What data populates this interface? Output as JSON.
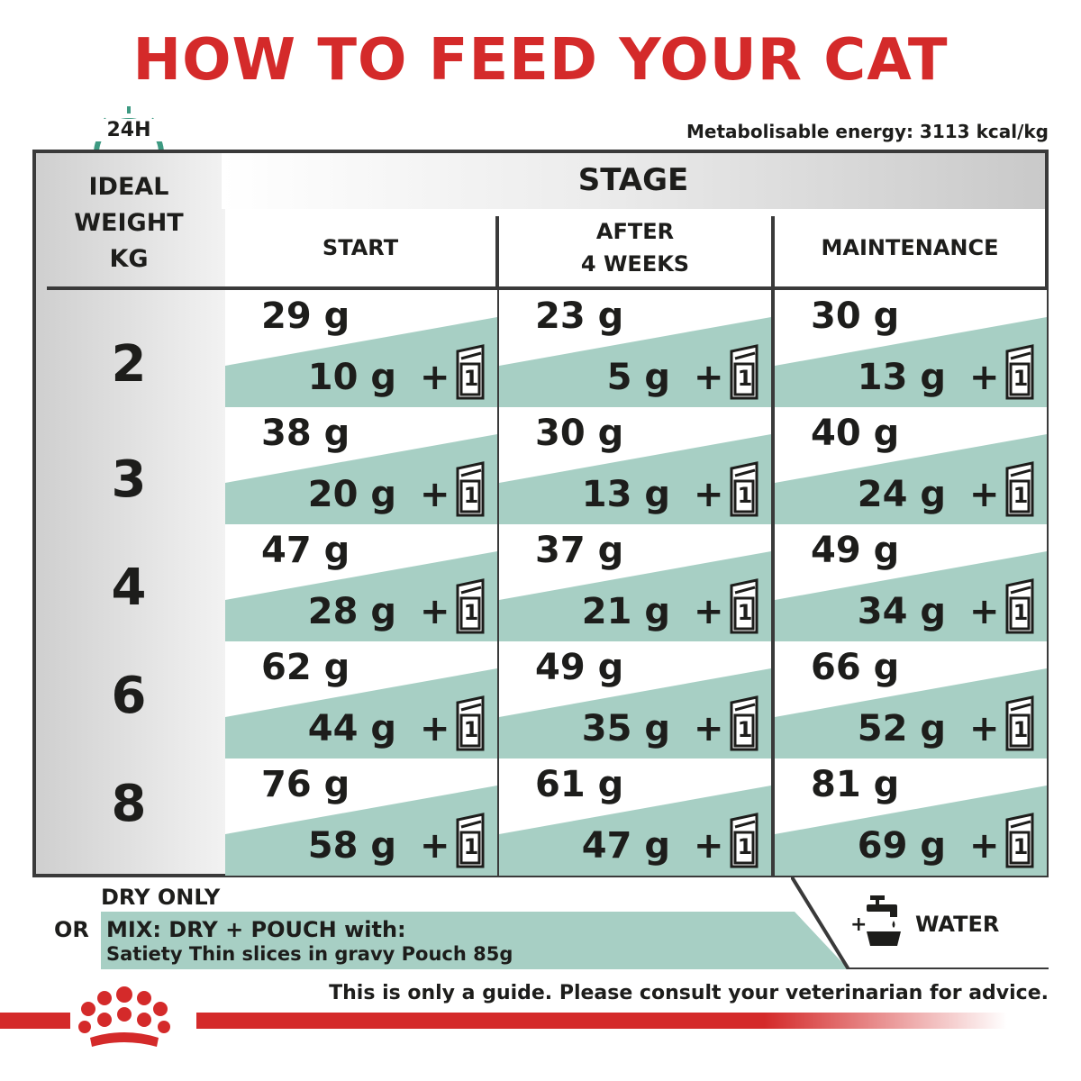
{
  "title": "HOW TO FEED YOUR CAT",
  "clock_label": "24H",
  "energy_note": "Metabolisable energy: 3113 kcal/kg",
  "weight_header": [
    "IDEAL",
    "WEIGHT",
    "KG"
  ],
  "stage_label": "STAGE",
  "columns": [
    "START",
    "AFTER\n4 WEEKS",
    "MAINTENANCE"
  ],
  "rows": [
    {
      "weight": "2",
      "cells": [
        {
          "dry": "29 g",
          "wet": "10 g"
        },
        {
          "dry": "23 g",
          "wet": "5 g"
        },
        {
          "dry": "30 g",
          "wet": "13 g"
        }
      ]
    },
    {
      "weight": "3",
      "cells": [
        {
          "dry": "38 g",
          "wet": "20 g"
        },
        {
          "dry": "30 g",
          "wet": "13 g"
        },
        {
          "dry": "40 g",
          "wet": "24 g"
        }
      ]
    },
    {
      "weight": "4",
      "cells": [
        {
          "dry": "47 g",
          "wet": "28 g"
        },
        {
          "dry": "37 g",
          "wet": "21 g"
        },
        {
          "dry": "49 g",
          "wet": "34 g"
        }
      ]
    },
    {
      "weight": "6",
      "cells": [
        {
          "dry": "62 g",
          "wet": "44 g"
        },
        {
          "dry": "49 g",
          "wet": "35 g"
        },
        {
          "dry": "66 g",
          "wet": "52 g"
        }
      ]
    },
    {
      "weight": "8",
      "cells": [
        {
          "dry": "76 g",
          "wet": "58 g"
        },
        {
          "dry": "61 g",
          "wet": "47 g"
        },
        {
          "dry": "81 g",
          "wet": "69 g"
        }
      ]
    }
  ],
  "plus_sign": "+",
  "pouch_count": "1",
  "legend": {
    "dry_only": "DRY ONLY",
    "or": "OR",
    "mix": "MIX: DRY + POUCH with:",
    "pouch_name": "Satiety Thin slices in gravy Pouch 85g",
    "water_plus": "+",
    "water": "WATER"
  },
  "disclaimer": "This is only a guide. Please consult your veterinarian for advice.",
  "colors": {
    "title_red": "#d42a2a",
    "mint": "#a7cfc4",
    "frame": "#3a3a3a",
    "logo_red": "#d42a2a"
  },
  "icons": [
    "clock-24h-icon",
    "pouch-icon",
    "water-tap-bowl-icon",
    "royal-canin-crown-logo"
  ]
}
